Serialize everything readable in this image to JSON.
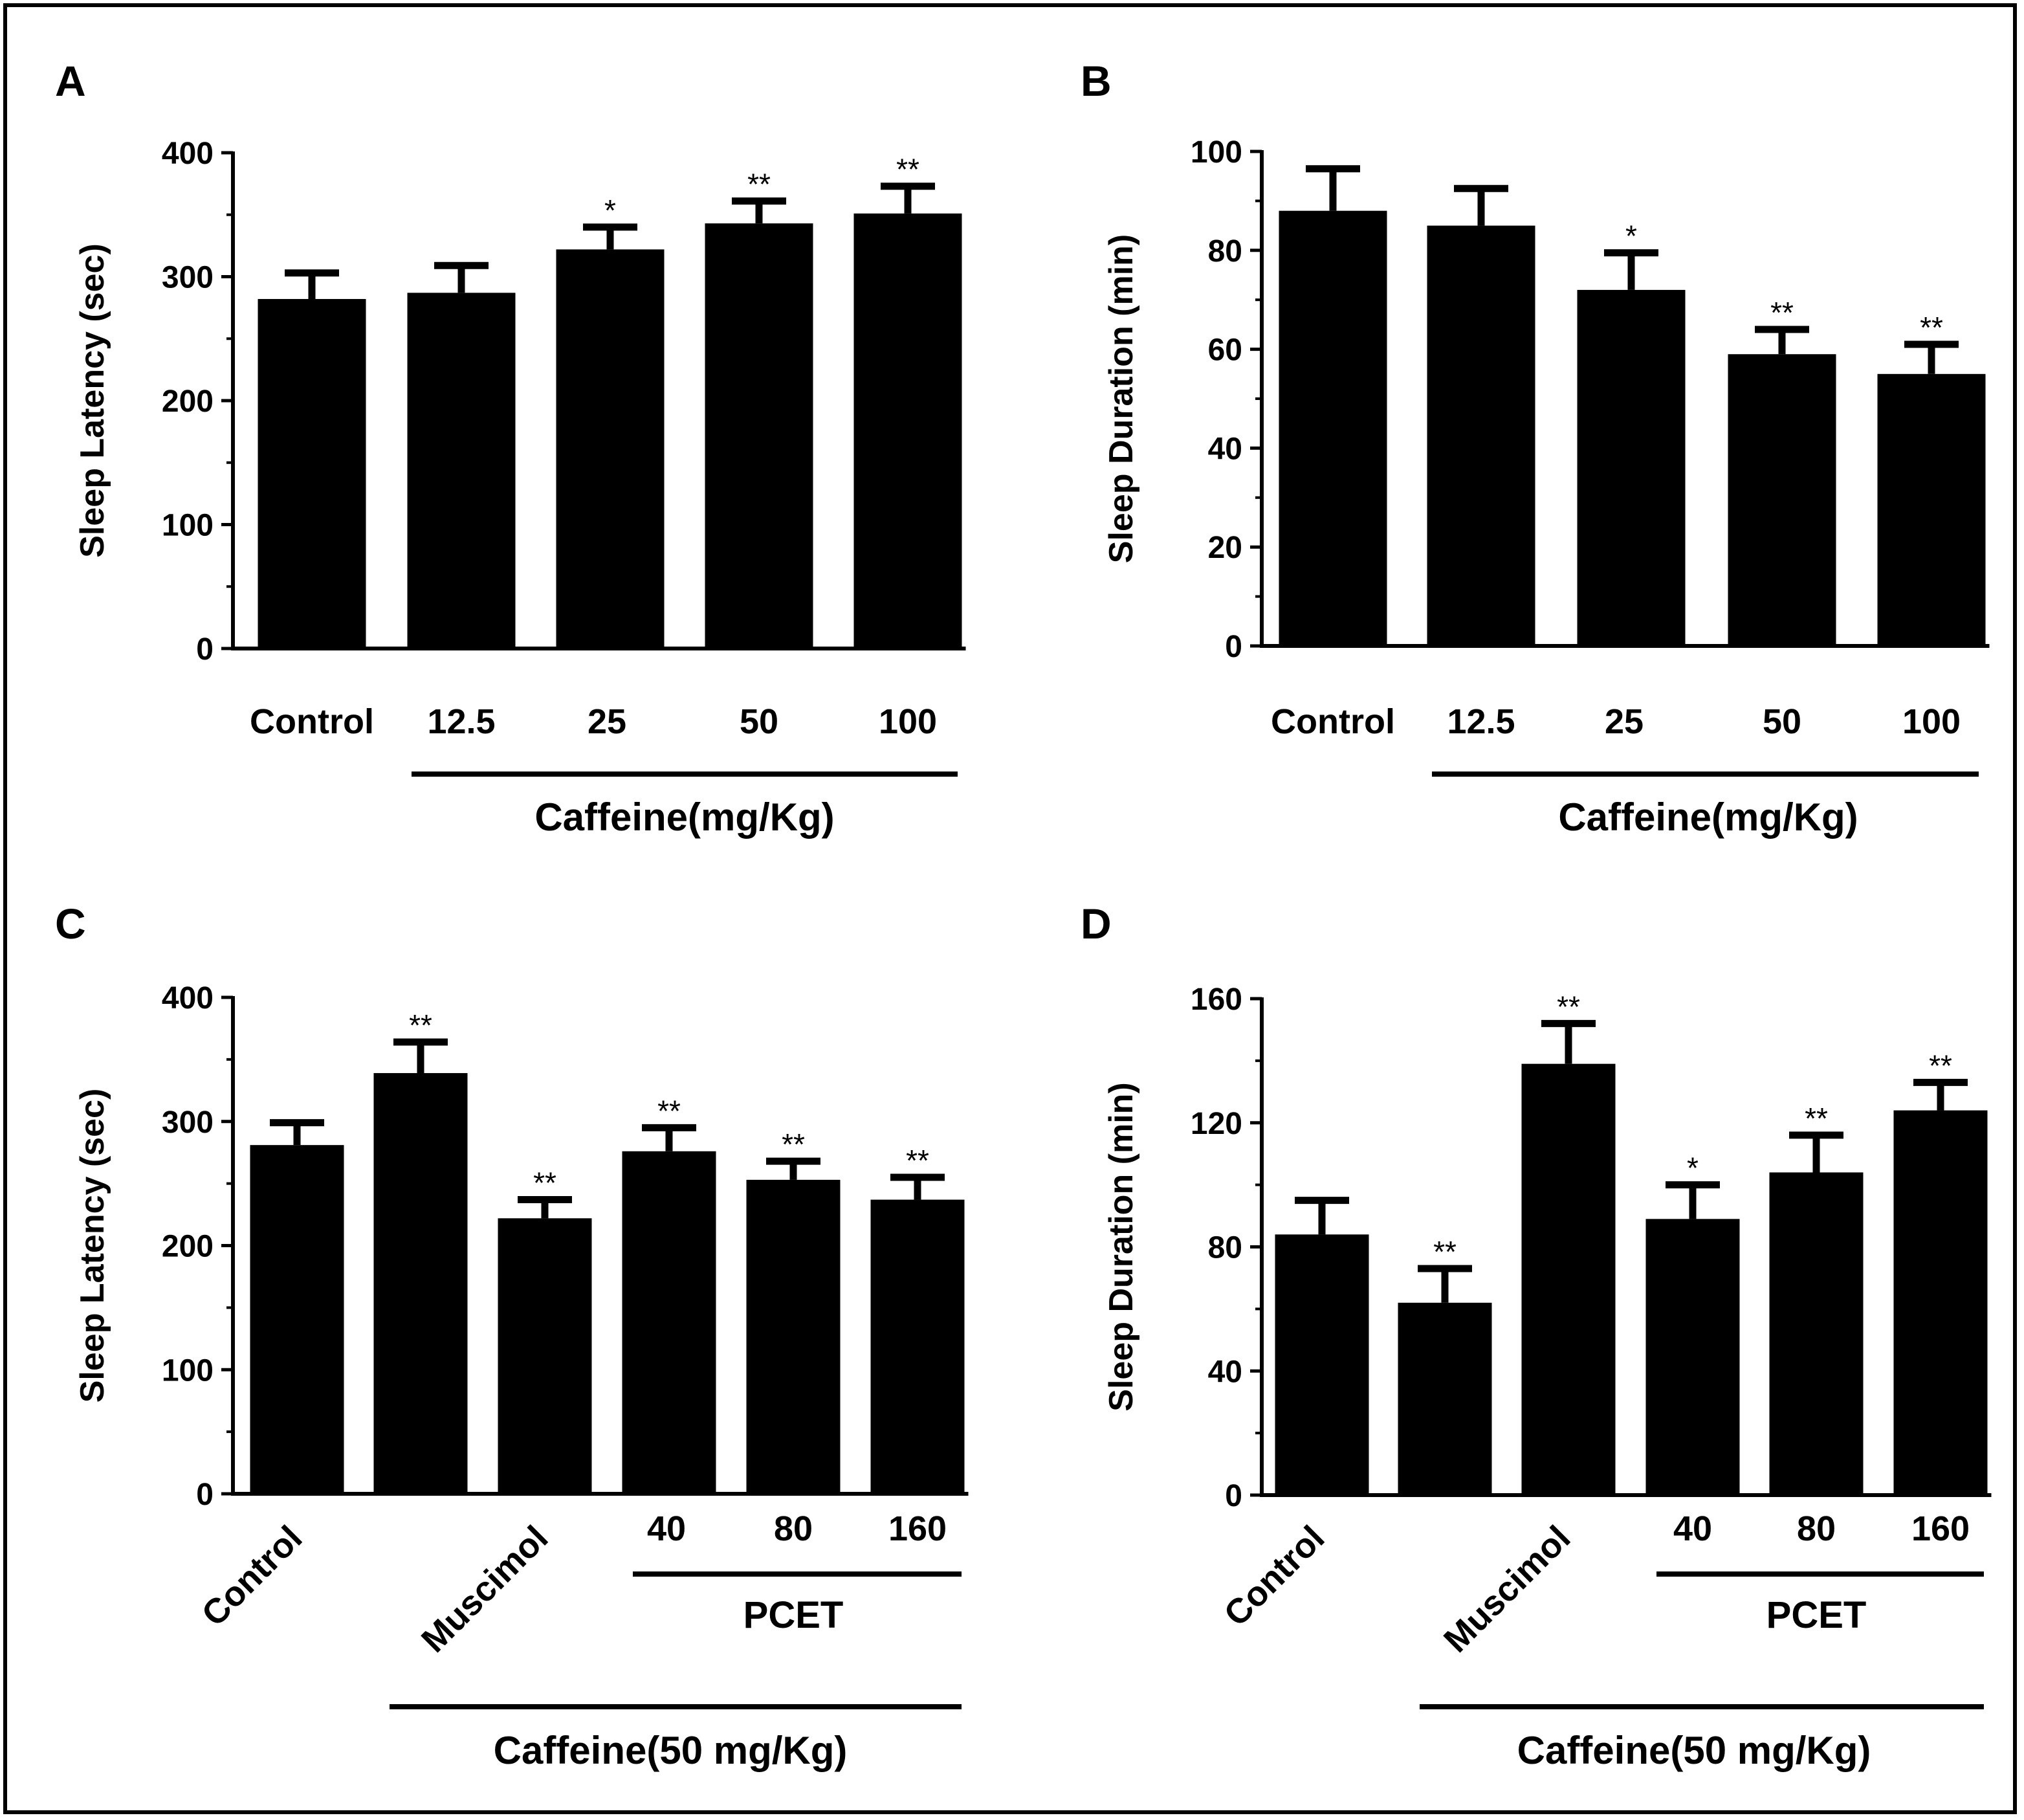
{
  "figure": {
    "bar_color": "#000000",
    "frame_color": "#000000",
    "background": "#ffffff"
  },
  "chart_data": [
    {
      "panel": "A",
      "type": "bar",
      "ylabel": "Sleep Latency (sec)",
      "ylim": [
        0,
        400
      ],
      "yticks": [
        0,
        100,
        200,
        300,
        400
      ],
      "categories": [
        "Control",
        "12.5",
        "25",
        "50",
        "100"
      ],
      "values": [
        282,
        287,
        322,
        343,
        351
      ],
      "errors": [
        21,
        22,
        18,
        18,
        22
      ],
      "significance": [
        "",
        "",
        "*",
        "**",
        "**"
      ],
      "group_label": "Caffeine(mg/Kg)"
    },
    {
      "panel": "B",
      "type": "bar",
      "ylabel": "Sleep Duration (min)",
      "ylim": [
        0,
        100
      ],
      "yticks": [
        0,
        20,
        40,
        60,
        80,
        100
      ],
      "categories": [
        "Control",
        "12.5",
        "25",
        "50",
        "100"
      ],
      "values": [
        88,
        85,
        72,
        59,
        55
      ],
      "errors": [
        8.5,
        7.5,
        7.5,
        5,
        6
      ],
      "significance": [
        "",
        "",
        "*",
        "**",
        "**"
      ],
      "group_label": "Caffeine(mg/Kg)"
    },
    {
      "panel": "C",
      "type": "bar",
      "ylabel": "Sleep Latency (sec)",
      "ylim": [
        0,
        400
      ],
      "yticks": [
        0,
        100,
        200,
        300,
        400
      ],
      "categories": [
        "Control",
        "",
        "Muscimol",
        "40",
        "80",
        "160"
      ],
      "values": [
        281,
        339,
        222,
        276,
        253,
        237
      ],
      "errors": [
        18,
        25,
        15,
        19,
        15,
        18
      ],
      "significance": [
        "",
        "**",
        "**",
        "**",
        "**",
        "**"
      ],
      "subgroup_label": "PCET",
      "group_label": "Caffeine(50 mg/Kg)"
    },
    {
      "panel": "D",
      "type": "bar",
      "ylabel": "Sleep Duration (min)",
      "ylim": [
        0,
        160
      ],
      "yticks": [
        0,
        40,
        80,
        120,
        160
      ],
      "categories": [
        "Control",
        "",
        "Muscimol",
        "40",
        "80",
        "160"
      ],
      "values": [
        84,
        62,
        139,
        89,
        104,
        124
      ],
      "errors": [
        11,
        11,
        13,
        11,
        12,
        9
      ],
      "significance": [
        "",
        "**",
        "**",
        "*",
        "**",
        "**"
      ],
      "subgroup_label": "PCET",
      "group_label": "Caffeine(50 mg/Kg)"
    }
  ]
}
